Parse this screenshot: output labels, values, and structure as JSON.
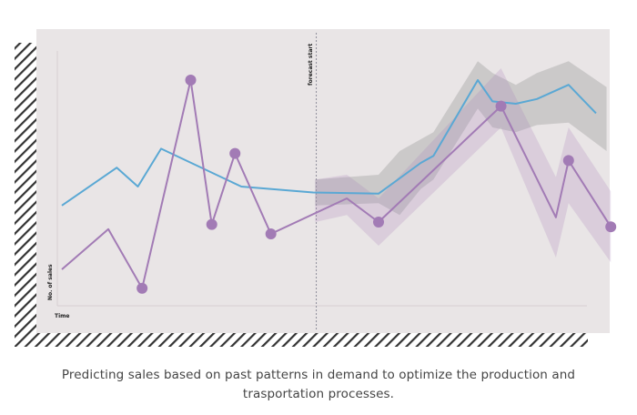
{
  "chart_data": {
    "type": "line",
    "title": "",
    "xlabel": "Time",
    "ylabel": "No. of sales",
    "annotation": "forecast start",
    "forecast_start_x": 12.05,
    "xlim": [
      0,
      25
    ],
    "ylim": [
      0,
      100
    ],
    "grid": false,
    "series": [
      {
        "name": "blue",
        "color": "#5aa8d4",
        "x": [
          0,
          2.6,
          3.6,
          4.7,
          8.5,
          11.9,
          15,
          17,
          17.6,
          19.7,
          20.4,
          21.5,
          22.5,
          24,
          25.3
        ],
        "y": [
          42,
          58,
          50,
          66,
          50,
          47.5,
          47,
          60,
          63,
          95,
          86,
          85,
          87,
          93,
          81
        ]
      },
      {
        "name": "purple",
        "color": "#a27bb5",
        "x": [
          0,
          2.2,
          3.8,
          6.1,
          7.1,
          8.2,
          9.9,
          13.5,
          15,
          20.8,
          23.4,
          24,
          26
        ],
        "y": [
          15,
          32,
          7,
          95,
          34,
          64,
          30,
          45,
          35,
          84,
          37,
          61,
          33
        ],
        "marker_points": [
          2,
          3,
          4,
          5,
          6,
          8,
          9,
          11,
          12
        ]
      }
    ],
    "bands": [
      {
        "name": "blue-forecast-band",
        "color": "#9a9a9a",
        "x": [
          12,
          15,
          16,
          17,
          17.6,
          19.7,
          20.4,
          21.5,
          22.5,
          24,
          25.8
        ],
        "upper": [
          53,
          55,
          65,
          70,
          73,
          103,
          98,
          93,
          98,
          103,
          92
        ],
        "lower": [
          42,
          43,
          38,
          49,
          53,
          83,
          75,
          73,
          76,
          77,
          65
        ]
      },
      {
        "name": "purple-forecast-band",
        "color": "#a27bb5",
        "x": [
          12,
          13.5,
          15,
          20.8,
          23.4,
          24,
          26
        ],
        "upper": [
          53,
          55,
          45,
          100,
          54,
          75,
          48
        ],
        "lower": [
          35,
          38,
          25,
          75,
          20,
          43,
          18
        ]
      }
    ]
  },
  "caption": {
    "line1": "Predicting sales based on past patterns in demand to optimize the production and",
    "line2": "trasportation processes."
  },
  "colors": {
    "panel_background": "#e9e5e6",
    "hatch": "#333333"
  }
}
